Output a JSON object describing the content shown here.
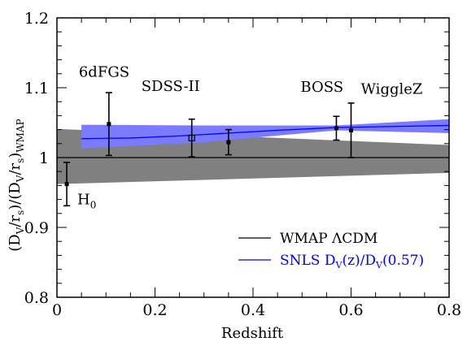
{
  "chart_data": {
    "type": "line",
    "title": "",
    "xlabel": "Redshift",
    "ylabel_parts": {
      "open": "(D",
      "sub1": "V",
      "mid1": "/r",
      "sub2": "s",
      "mid2": ")/(D",
      "sub3": "V",
      "mid3": "/r",
      "sub4": "s",
      "close": ")",
      "sub5": "WMAP"
    },
    "xlim": [
      0,
      0.8
    ],
    "ylim": [
      0.8,
      1.2
    ],
    "xticks": [
      {
        "value": 0,
        "label": "0"
      },
      {
        "value": 0.2,
        "label": "0.2"
      },
      {
        "value": 0.4,
        "label": "0.4"
      },
      {
        "value": 0.6,
        "label": "0.6"
      },
      {
        "value": 0.8,
        "label": "0.8"
      }
    ],
    "yticks": [
      {
        "value": 0.8,
        "label": "0.8"
      },
      {
        "value": 0.9,
        "label": "0.9"
      },
      {
        "value": 1.0,
        "label": "1"
      },
      {
        "value": 1.1,
        "label": "1.1"
      },
      {
        "value": 1.2,
        "label": "1.2"
      }
    ],
    "x_minor_step": 0.05,
    "y_minor_step": 0.02,
    "bands": [
      {
        "color": "#808080",
        "x": [
          0.0,
          0.8
        ],
        "upper": [
          1.041,
          1.018
        ],
        "lower": [
          0.962,
          0.978
        ]
      },
      {
        "color": "#7b7bff",
        "x": [
          0.05,
          0.3,
          0.57,
          0.8
        ],
        "upper": [
          1.047,
          1.046,
          1.046,
          1.055
        ],
        "lower": [
          1.013,
          1.022,
          1.039,
          1.035
        ]
      }
    ],
    "series": [
      {
        "name": "WMAP ΛCDM",
        "color": "#000000",
        "x": [
          0.0,
          0.8
        ],
        "y": [
          1.0,
          1.0
        ]
      },
      {
        "name": "SNLS D_V(z)/D_V(0.57)",
        "color": "#0000ff",
        "x": [
          0.05,
          0.15,
          0.25,
          0.35,
          0.45,
          0.57,
          0.65,
          0.8
        ],
        "y": [
          1.027,
          1.028,
          1.031,
          1.035,
          1.039,
          1.043,
          1.044,
          1.046
        ]
      }
    ],
    "data_points": [
      {
        "label": "H",
        "label_sub": "0",
        "x": 0.02,
        "y": 0.962,
        "err": 0.031,
        "marker": "filled"
      },
      {
        "label": "6dFGS",
        "x": 0.106,
        "y": 1.048,
        "err": 0.045,
        "marker": "filled"
      },
      {
        "label": "SDSS-II",
        "x": 0.275,
        "y": 1.028,
        "err": 0.027,
        "marker": "open"
      },
      {
        "label": "",
        "x": 0.35,
        "y": 1.022,
        "err": 0.018,
        "marker": "filled"
      },
      {
        "label": "BOSS",
        "x": 0.57,
        "y": 1.042,
        "err": 0.017,
        "marker": "filled"
      },
      {
        "label": "WiggleZ",
        "x": 0.6,
        "y": 1.039,
        "err": 0.039,
        "marker": "filled"
      }
    ],
    "legend": {
      "placement": "bottom-right",
      "items": [
        {
          "text": "WMAP ΛCDM",
          "color": "#000000"
        },
        {
          "text_parts": {
            "a": "SNLS D",
            "s1": "V",
            "b": "(z)/D",
            "s2": "V",
            "c": "(0.57)"
          },
          "color": "#0000ff"
        }
      ]
    }
  }
}
